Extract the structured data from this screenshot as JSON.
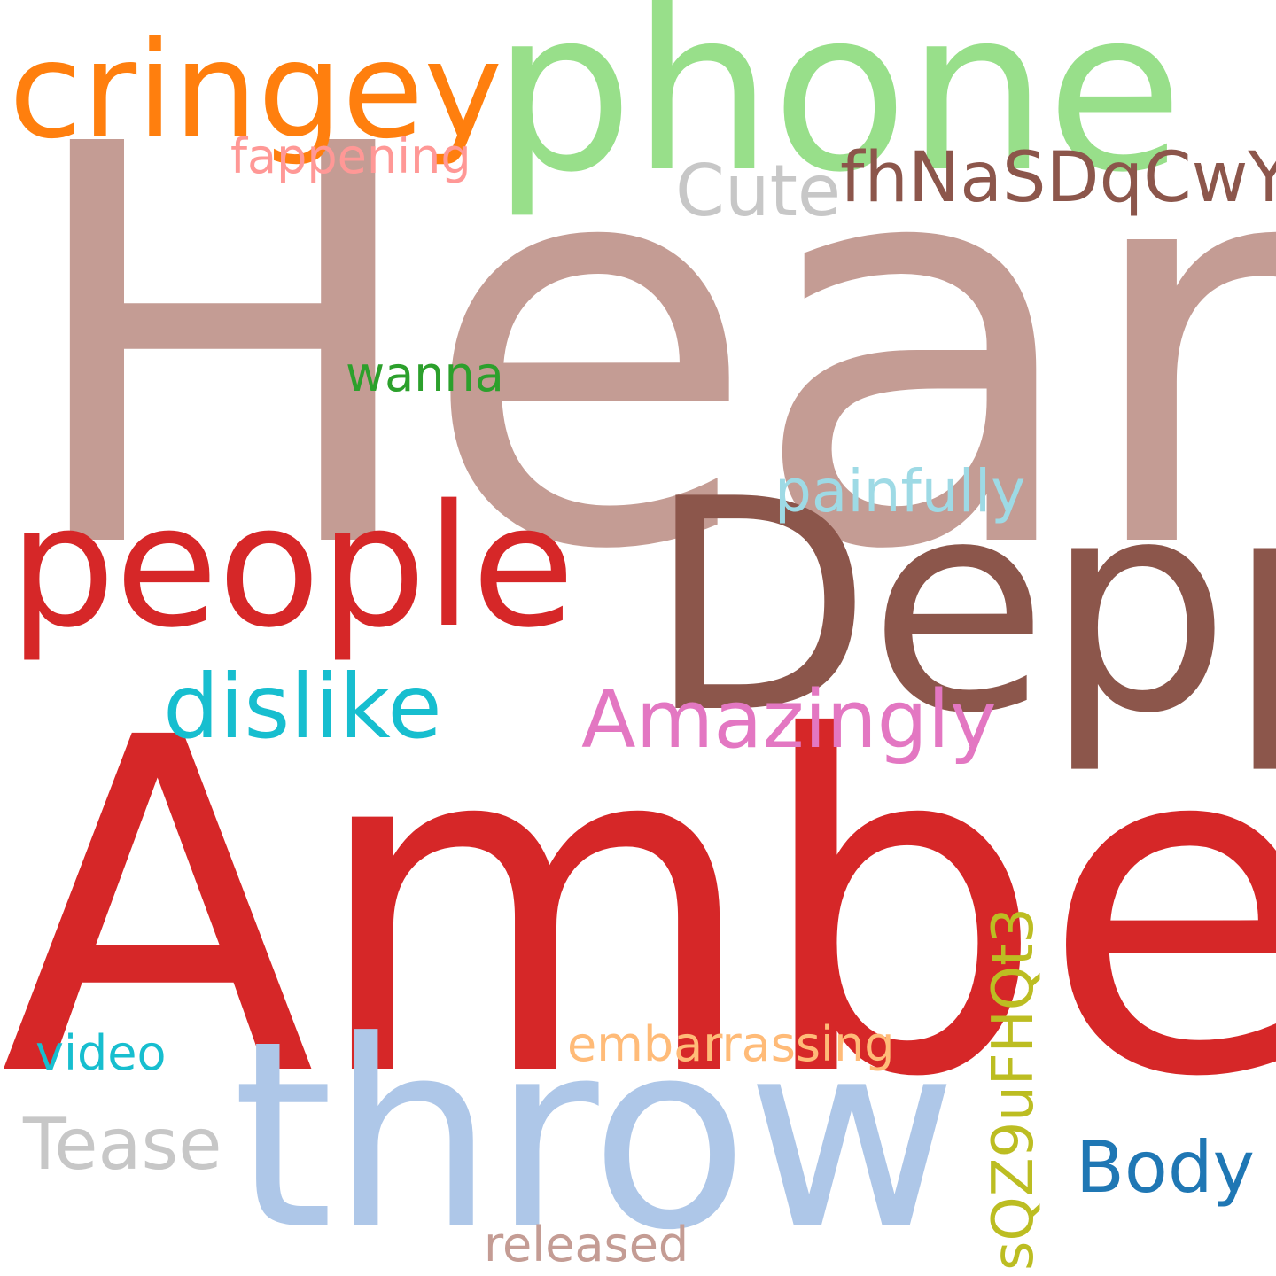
{
  "words": [
    {
      "text": "Heard",
      "color": "#c49c94"
    },
    {
      "text": "Amber",
      "color": "#d62728"
    },
    {
      "text": "throw",
      "color": "#aec7e8"
    },
    {
      "text": "phone",
      "color": "#98df8a"
    },
    {
      "text": "Depp",
      "color": "#8c564b"
    },
    {
      "text": "people",
      "color": "#d62728"
    },
    {
      "text": "cringey",
      "color": "#ff7f0e"
    },
    {
      "text": "dislike",
      "color": "#17becf"
    },
    {
      "text": "Amazingly",
      "color": "#e377c2"
    },
    {
      "text": "fhNaSDqCwY",
      "color": "#8c564b"
    },
    {
      "text": "Cute",
      "color": "#c7c7c7"
    },
    {
      "text": "painfully",
      "color": "#9edae5"
    },
    {
      "text": "Tease",
      "color": "#c7c7c7"
    },
    {
      "text": "Body",
      "color": "#1f77b4"
    },
    {
      "text": "fappening",
      "color": "#ff9896"
    },
    {
      "text": "wanna",
      "color": "#2ca02c"
    },
    {
      "text": "video",
      "color": "#17becf"
    },
    {
      "text": "embarrassing",
      "color": "#ffbb78"
    },
    {
      "text": "released",
      "color": "#c49c94"
    },
    {
      "text": "sQZ9uFHQt3",
      "color": "#bcbd22"
    }
  ]
}
